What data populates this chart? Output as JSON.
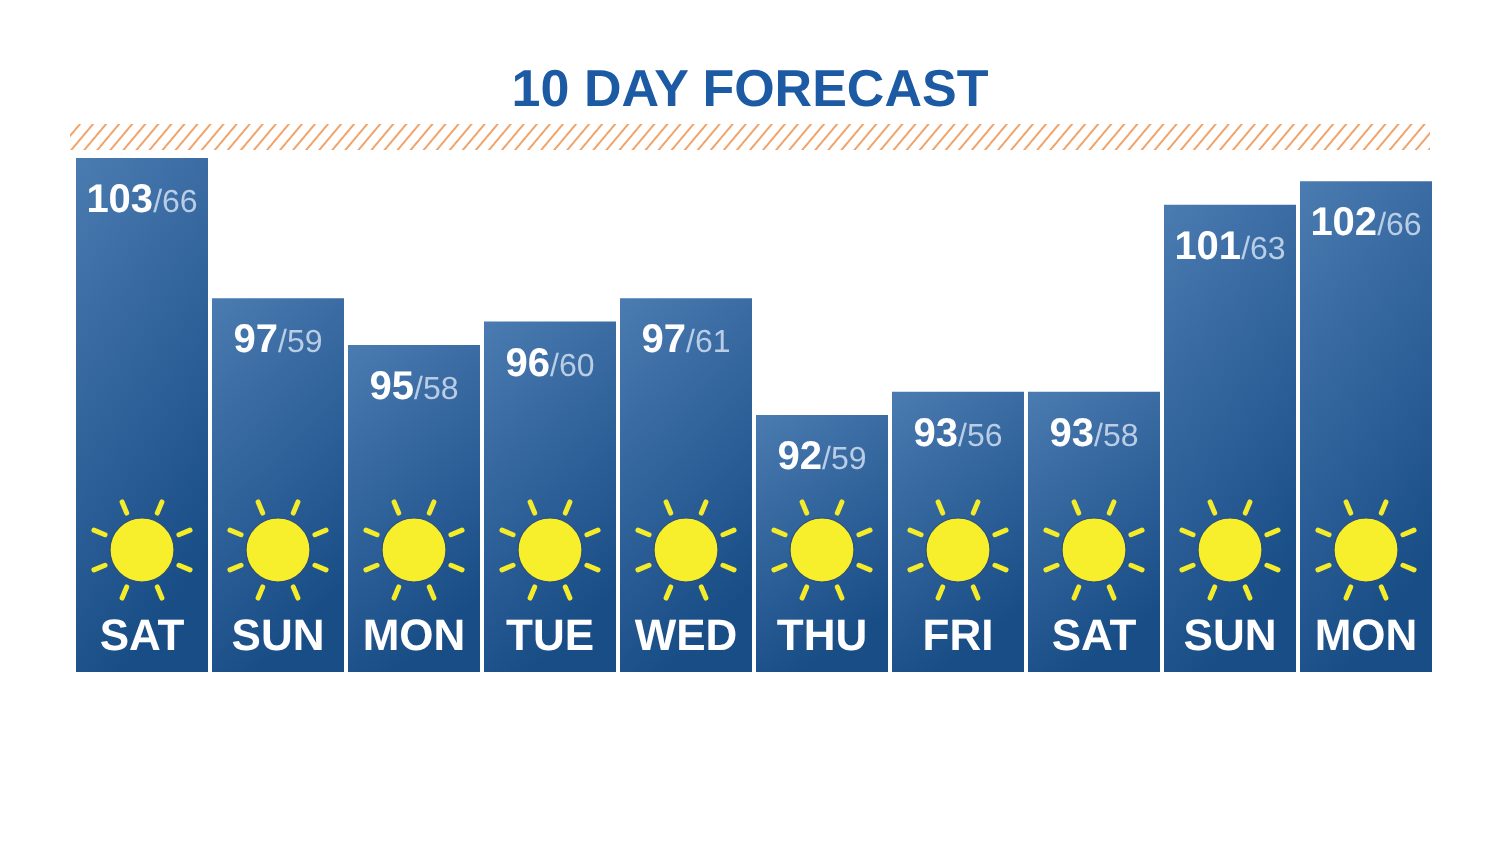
{
  "chart_data": {
    "type": "bar",
    "title": "10 DAY FORECAST",
    "categories": [
      "SAT",
      "SUN",
      "MON",
      "TUE",
      "WED",
      "THU",
      "FRI",
      "SAT",
      "SUN",
      "MON"
    ],
    "values": [
      103,
      97,
      95,
      96,
      97,
      92,
      93,
      93,
      101,
      102
    ],
    "value_labels": [
      "103/66",
      "97/59",
      "95/58",
      "96/60",
      "97/61",
      "92/59",
      "93/56",
      "93/58",
      "101/63",
      "102/66"
    ],
    "color": "#1d5a9e",
    "ylim": [
      81,
      103
    ],
    "tick_labels": "x"
  }
}
